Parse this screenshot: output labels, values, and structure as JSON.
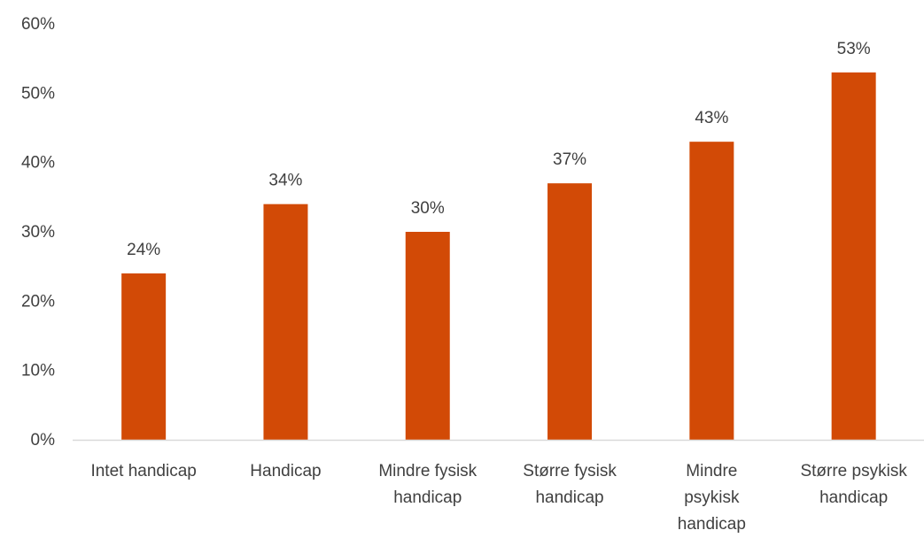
{
  "chart_data": {
    "type": "bar",
    "categories": [
      [
        "Intet handicap"
      ],
      [
        "Handicap"
      ],
      [
        "Mindre fysisk",
        "handicap"
      ],
      [
        "Større fysisk",
        "handicap"
      ],
      [
        "Mindre",
        "psykisk",
        "handicap"
      ],
      [
        "Større psykisk",
        "handicap"
      ]
    ],
    "values": [
      24,
      34,
      30,
      37,
      43,
      53
    ],
    "data_labels": [
      "24%",
      "34%",
      "30%",
      "37%",
      "43%",
      "53%"
    ],
    "ylim": [
      0,
      60
    ],
    "yticks": [
      0,
      10,
      20,
      30,
      40,
      50,
      60
    ],
    "ytick_labels": [
      "0%",
      "10%",
      "20%",
      "30%",
      "40%",
      "50%",
      "60%"
    ],
    "title": "",
    "xlabel": "",
    "ylabel": "",
    "grid": false,
    "bar_color": "#D24A06",
    "axis_color": "#D9D9D9"
  }
}
